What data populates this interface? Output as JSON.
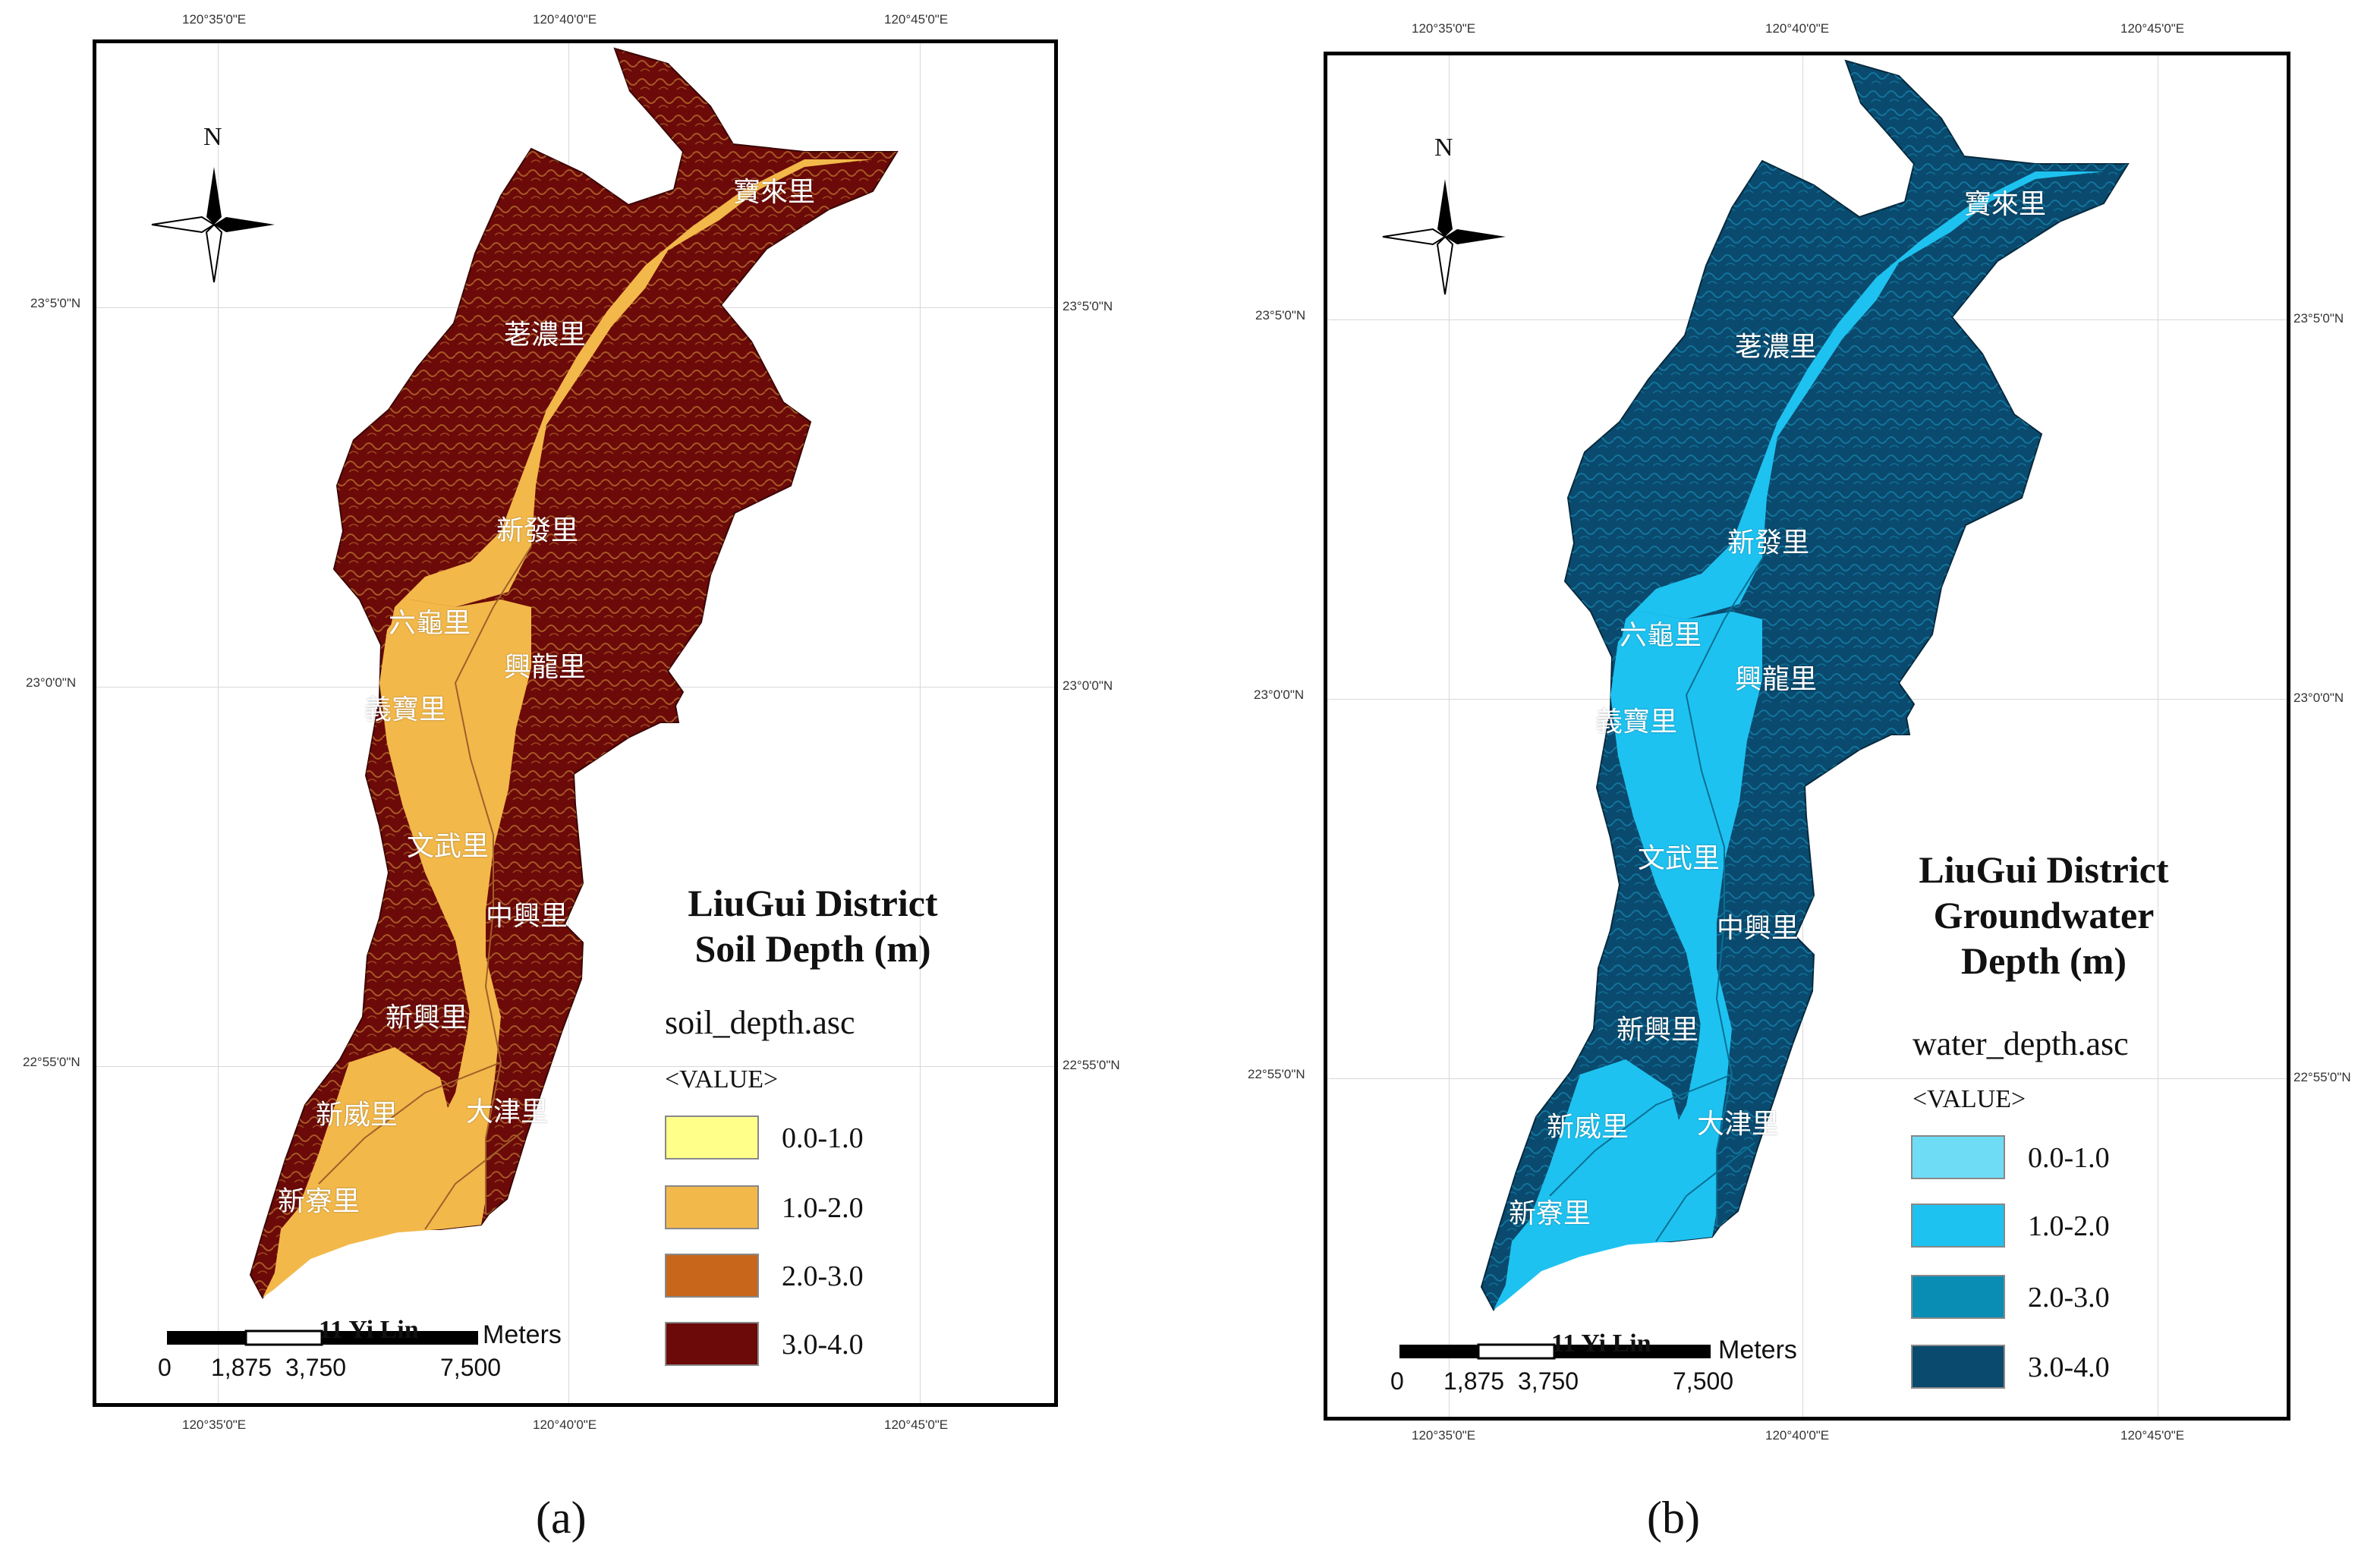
{
  "coords": {
    "lon": [
      "120°35'0\"E",
      "120°40'0\"E",
      "120°45'0\"E"
    ],
    "lat": [
      "23°5'0\"N",
      "23°0'0\"N",
      "22°55'0\"N"
    ]
  },
  "north_label": "N",
  "scale": {
    "unit": "Meters",
    "numbers": [
      "0",
      "1,875",
      "3,750",
      "7,500"
    ],
    "overlay": "11 Yi Lin"
  },
  "villages": [
    "寶來里",
    "荖濃里",
    "新發里",
    "六龜里",
    "興龍里",
    "義寶里",
    "文武里",
    "中興里",
    "新興里",
    "大津里",
    "新威里",
    "新寮里"
  ],
  "panels": [
    {
      "id": "a",
      "caption": "(a)",
      "title_lines": [
        "LiuGui District",
        "Soil Depth (m)"
      ],
      "file": "soil_depth.asc",
      "value_header": "<VALUE>",
      "classes": [
        {
          "label": "0.0-1.0",
          "color": "#ffff8a"
        },
        {
          "label": "1.0-2.0",
          "color": "#f2b84a"
        },
        {
          "label": "2.0-3.0",
          "color": "#c8661c"
        },
        {
          "label": "3.0-4.0",
          "color": "#6b0a08"
        }
      ],
      "fill_low": "#f2b84a",
      "fill_high": "#6b0a08"
    },
    {
      "id": "b",
      "caption": "(b)",
      "title_lines": [
        "LiuGui District",
        "Groundwater",
        "Depth (m)"
      ],
      "file": "water_depth.asc",
      "value_header": "<VALUE>",
      "classes": [
        {
          "label": "0.0-1.0",
          "color": "#6fdcf6"
        },
        {
          "label": "1.0-2.0",
          "color": "#1ec2f0"
        },
        {
          "label": "2.0-3.0",
          "color": "#0a8db4"
        },
        {
          "label": "3.0-4.0",
          "color": "#0a4a6e"
        }
      ],
      "fill_low": "#1ec2f0",
      "fill_high": "#0a4a6e"
    }
  ]
}
